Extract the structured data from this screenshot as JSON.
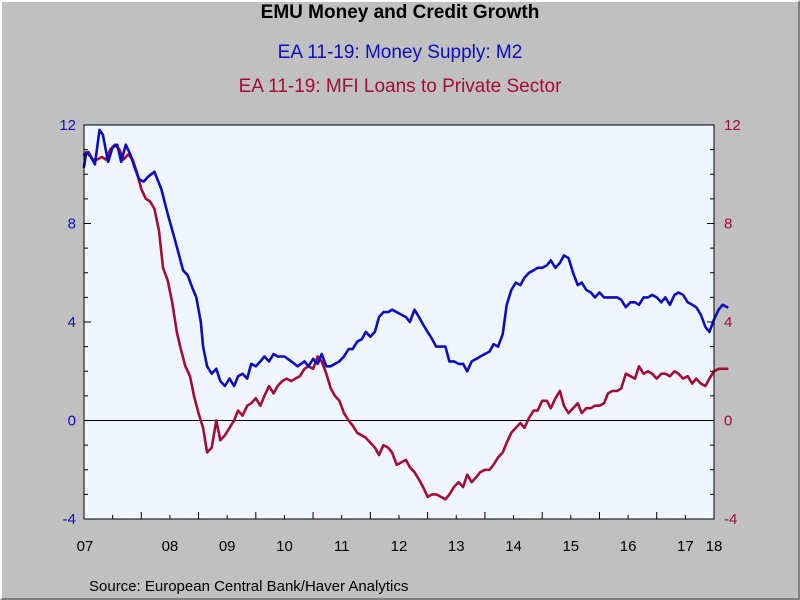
{
  "header": {
    "title": "EMU Money and Credit Growth",
    "series1_title": "EA 11-19: Money Supply: M2",
    "series2_title": "EA 11-19: MFI Loans to Private Sector"
  },
  "footer": {
    "source": "Source:  European Central Bank/Haver Analytics"
  },
  "colors": {
    "m2": "#0d0dbd",
    "loans": "#a30c36",
    "plot_bg": "#f0f6ff",
    "window_bg": "#c0c0c0"
  },
  "chart_data": {
    "type": "line",
    "title": "EMU Money and Credit Growth",
    "x_unit": "year",
    "xlim": [
      2007.0,
      2018.0
    ],
    "ylim": [
      -4,
      12
    ],
    "y_ticks": [
      -4,
      0,
      4,
      8,
      12
    ],
    "y_ticks_right": [
      -4,
      0,
      4,
      8,
      12
    ],
    "x_tick_labels": [
      "07",
      "08",
      "09",
      "10",
      "11",
      "12",
      "13",
      "14",
      "15",
      "16",
      "17",
      "18"
    ],
    "grid": false,
    "zero_line": true,
    "legend": "titles at top",
    "series": [
      {
        "name": "EA 11-19: Money Supply: M2",
        "color": "#0d0dbd",
        "points": [
          [
            2007.0,
            10.3
          ],
          [
            2007.04,
            10.9
          ],
          [
            2007.12,
            10.7
          ],
          [
            2007.19,
            10.4
          ],
          [
            2007.27,
            11.8
          ],
          [
            2007.33,
            11.6
          ],
          [
            2007.42,
            10.5
          ],
          [
            2007.5,
            11.1
          ],
          [
            2007.58,
            11.2
          ],
          [
            2007.65,
            10.5
          ],
          [
            2007.73,
            11.2
          ],
          [
            2007.81,
            10.8
          ],
          [
            2007.88,
            10.3
          ],
          [
            2007.96,
            9.8
          ],
          [
            2008.04,
            9.7
          ],
          [
            2008.12,
            9.9
          ],
          [
            2008.23,
            10.1
          ],
          [
            2008.35,
            9.4
          ],
          [
            2008.46,
            8.4
          ],
          [
            2008.58,
            7.4
          ],
          [
            2008.65,
            6.8
          ],
          [
            2008.73,
            6.1
          ],
          [
            2008.81,
            5.9
          ],
          [
            2008.89,
            5.4
          ],
          [
            2008.96,
            5.0
          ],
          [
            2009.04,
            4.0
          ],
          [
            2009.08,
            3.0
          ],
          [
            2009.15,
            2.2
          ],
          [
            2009.23,
            1.9
          ],
          [
            2009.31,
            2.1
          ],
          [
            2009.38,
            1.6
          ],
          [
            2009.46,
            1.4
          ],
          [
            2009.54,
            1.7
          ],
          [
            2009.62,
            1.4
          ],
          [
            2009.69,
            1.8
          ],
          [
            2009.77,
            1.9
          ],
          [
            2009.85,
            1.7
          ],
          [
            2009.92,
            2.3
          ],
          [
            2010.0,
            2.2
          ],
          [
            2010.08,
            2.4
          ],
          [
            2010.15,
            2.6
          ],
          [
            2010.23,
            2.4
          ],
          [
            2010.31,
            2.7
          ],
          [
            2010.38,
            2.6
          ],
          [
            2010.5,
            2.6
          ],
          [
            2010.62,
            2.4
          ],
          [
            2010.73,
            2.2
          ],
          [
            2010.85,
            2.4
          ],
          [
            2010.92,
            2.2
          ],
          [
            2011.0,
            2.5
          ],
          [
            2011.08,
            2.3
          ],
          [
            2011.15,
            2.7
          ],
          [
            2011.23,
            2.2
          ],
          [
            2011.31,
            2.2
          ],
          [
            2011.38,
            2.3
          ],
          [
            2011.46,
            2.4
          ],
          [
            2011.54,
            2.6
          ],
          [
            2011.62,
            2.9
          ],
          [
            2011.69,
            2.9
          ],
          [
            2011.77,
            3.2
          ],
          [
            2011.85,
            3.3
          ],
          [
            2011.92,
            3.6
          ],
          [
            2012.0,
            3.4
          ],
          [
            2012.08,
            3.6
          ],
          [
            2012.15,
            4.2
          ],
          [
            2012.23,
            4.4
          ],
          [
            2012.31,
            4.4
          ],
          [
            2012.38,
            4.5
          ],
          [
            2012.46,
            4.4
          ],
          [
            2012.54,
            4.3
          ],
          [
            2012.62,
            4.2
          ],
          [
            2012.69,
            4.0
          ],
          [
            2012.77,
            4.5
          ],
          [
            2012.85,
            4.2
          ],
          [
            2012.92,
            3.9
          ],
          [
            2013.0,
            3.6
          ],
          [
            2013.08,
            3.3
          ],
          [
            2013.15,
            3.0
          ],
          [
            2013.23,
            3.0
          ],
          [
            2013.31,
            3.0
          ],
          [
            2013.38,
            2.4
          ],
          [
            2013.46,
            2.4
          ],
          [
            2013.54,
            2.3
          ],
          [
            2013.62,
            2.3
          ],
          [
            2013.69,
            2.0
          ],
          [
            2013.77,
            2.4
          ],
          [
            2013.85,
            2.5
          ],
          [
            2013.92,
            2.6
          ],
          [
            2014.0,
            2.7
          ],
          [
            2014.08,
            2.8
          ],
          [
            2014.15,
            3.1
          ],
          [
            2014.23,
            3.0
          ],
          [
            2014.31,
            3.5
          ],
          [
            2014.38,
            4.7
          ],
          [
            2014.46,
            5.3
          ],
          [
            2014.54,
            5.6
          ],
          [
            2014.62,
            5.5
          ],
          [
            2014.69,
            5.8
          ],
          [
            2014.77,
            6.0
          ],
          [
            2014.85,
            6.1
          ],
          [
            2014.92,
            6.2
          ],
          [
            2015.0,
            6.2
          ],
          [
            2015.08,
            6.3
          ],
          [
            2015.15,
            6.5
          ],
          [
            2015.23,
            6.2
          ],
          [
            2015.31,
            6.4
          ],
          [
            2015.38,
            6.7
          ],
          [
            2015.46,
            6.6
          ],
          [
            2015.54,
            6.0
          ],
          [
            2015.62,
            5.5
          ],
          [
            2015.69,
            5.6
          ],
          [
            2015.77,
            5.3
          ],
          [
            2015.85,
            5.2
          ],
          [
            2015.92,
            5.0
          ],
          [
            2016.0,
            5.2
          ],
          [
            2016.08,
            5.0
          ],
          [
            2016.15,
            5.0
          ],
          [
            2016.23,
            5.0
          ],
          [
            2016.31,
            5.0
          ],
          [
            2016.38,
            4.9
          ],
          [
            2016.46,
            4.6
          ],
          [
            2016.54,
            4.8
          ],
          [
            2016.62,
            4.8
          ],
          [
            2016.69,
            4.7
          ],
          [
            2016.77,
            5.0
          ],
          [
            2016.85,
            5.0
          ],
          [
            2016.92,
            5.1
          ],
          [
            2017.0,
            5.0
          ],
          [
            2017.08,
            4.8
          ],
          [
            2017.15,
            5.0
          ],
          [
            2017.23,
            4.7
          ],
          [
            2017.31,
            5.1
          ],
          [
            2017.38,
            5.2
          ],
          [
            2017.46,
            5.1
          ],
          [
            2017.54,
            4.8
          ],
          [
            2017.62,
            4.7
          ],
          [
            2017.69,
            4.6
          ],
          [
            2017.77,
            4.3
          ],
          [
            2017.85,
            3.8
          ],
          [
            2017.92,
            3.6
          ],
          [
            2018.0,
            4.1
          ],
          [
            2018.08,
            4.5
          ],
          [
            2018.15,
            4.7
          ],
          [
            2018.23,
            4.6
          ]
        ]
      },
      {
        "name": "EA 11-19: MFI Loans to Private Sector",
        "color": "#a30c36",
        "points": [
          [
            2007.0,
            10.8
          ],
          [
            2007.08,
            10.9
          ],
          [
            2007.15,
            10.6
          ],
          [
            2007.23,
            10.6
          ],
          [
            2007.31,
            10.7
          ],
          [
            2007.38,
            10.6
          ],
          [
            2007.46,
            11.0
          ],
          [
            2007.54,
            11.2
          ],
          [
            2007.62,
            11.0
          ],
          [
            2007.69,
            10.6
          ],
          [
            2007.77,
            10.8
          ],
          [
            2007.85,
            10.6
          ],
          [
            2007.92,
            10.1
          ],
          [
            2008.0,
            9.4
          ],
          [
            2008.08,
            9.0
          ],
          [
            2008.15,
            8.9
          ],
          [
            2008.23,
            8.6
          ],
          [
            2008.31,
            7.7
          ],
          [
            2008.38,
            6.2
          ],
          [
            2008.46,
            5.7
          ],
          [
            2008.54,
            4.8
          ],
          [
            2008.62,
            3.6
          ],
          [
            2008.69,
            2.9
          ],
          [
            2008.77,
            2.2
          ],
          [
            2008.85,
            1.8
          ],
          [
            2008.92,
            1.0
          ],
          [
            2009.0,
            0.3
          ],
          [
            2009.08,
            -0.3
          ],
          [
            2009.15,
            -1.3
          ],
          [
            2009.23,
            -1.1
          ],
          [
            2009.31,
            0.0
          ],
          [
            2009.38,
            -0.8
          ],
          [
            2009.46,
            -0.6
          ],
          [
            2009.54,
            -0.3
          ],
          [
            2009.62,
            0.0
          ],
          [
            2009.69,
            0.4
          ],
          [
            2009.77,
            0.2
          ],
          [
            2009.85,
            0.6
          ],
          [
            2009.92,
            0.7
          ],
          [
            2010.0,
            0.9
          ],
          [
            2010.08,
            0.6
          ],
          [
            2010.15,
            1.0
          ],
          [
            2010.23,
            1.4
          ],
          [
            2010.31,
            1.1
          ],
          [
            2010.38,
            1.4
          ],
          [
            2010.46,
            1.6
          ],
          [
            2010.54,
            1.7
          ],
          [
            2010.62,
            1.6
          ],
          [
            2010.69,
            1.7
          ],
          [
            2010.77,
            1.8
          ],
          [
            2010.85,
            2.1
          ],
          [
            2010.92,
            2.2
          ],
          [
            2011.0,
            2.1
          ],
          [
            2011.08,
            2.6
          ],
          [
            2011.15,
            2.4
          ],
          [
            2011.23,
            1.9
          ],
          [
            2011.31,
            1.3
          ],
          [
            2011.38,
            1.0
          ],
          [
            2011.46,
            0.8
          ],
          [
            2011.54,
            0.3
          ],
          [
            2011.62,
            0.0
          ],
          [
            2011.69,
            -0.2
          ],
          [
            2011.77,
            -0.5
          ],
          [
            2011.85,
            -0.6
          ],
          [
            2011.92,
            -0.7
          ],
          [
            2012.0,
            -0.9
          ],
          [
            2012.08,
            -1.1
          ],
          [
            2012.15,
            -1.4
          ],
          [
            2012.23,
            -1.0
          ],
          [
            2012.31,
            -1.1
          ],
          [
            2012.38,
            -1.3
          ],
          [
            2012.46,
            -1.8
          ],
          [
            2012.54,
            -1.7
          ],
          [
            2012.62,
            -1.6
          ],
          [
            2012.69,
            -1.9
          ],
          [
            2012.77,
            -2.1
          ],
          [
            2012.85,
            -2.4
          ],
          [
            2012.92,
            -2.7
          ],
          [
            2013.0,
            -3.1
          ],
          [
            2013.08,
            -3.0
          ],
          [
            2013.15,
            -3.0
          ],
          [
            2013.23,
            -3.1
          ],
          [
            2013.31,
            -3.2
          ],
          [
            2013.38,
            -3.0
          ],
          [
            2013.46,
            -2.7
          ],
          [
            2013.54,
            -2.5
          ],
          [
            2013.62,
            -2.7
          ],
          [
            2013.69,
            -2.2
          ],
          [
            2013.77,
            -2.5
          ],
          [
            2013.85,
            -2.3
          ],
          [
            2013.92,
            -2.1
          ],
          [
            2014.0,
            -2.0
          ],
          [
            2014.08,
            -2.0
          ],
          [
            2014.15,
            -1.8
          ],
          [
            2014.23,
            -1.5
          ],
          [
            2014.31,
            -1.3
          ],
          [
            2014.38,
            -0.9
          ],
          [
            2014.46,
            -0.5
          ],
          [
            2014.54,
            -0.3
          ],
          [
            2014.62,
            -0.1
          ],
          [
            2014.69,
            -0.3
          ],
          [
            2014.77,
            0.1
          ],
          [
            2014.85,
            0.4
          ],
          [
            2014.92,
            0.4
          ],
          [
            2015.0,
            0.8
          ],
          [
            2015.08,
            0.8
          ],
          [
            2015.15,
            0.5
          ],
          [
            2015.23,
            0.9
          ],
          [
            2015.31,
            1.2
          ],
          [
            2015.38,
            0.6
          ],
          [
            2015.46,
            0.3
          ],
          [
            2015.54,
            0.5
          ],
          [
            2015.62,
            0.7
          ],
          [
            2015.69,
            0.3
          ],
          [
            2015.77,
            0.5
          ],
          [
            2015.85,
            0.5
          ],
          [
            2015.92,
            0.6
          ],
          [
            2016.0,
            0.6
          ],
          [
            2016.08,
            0.7
          ],
          [
            2016.15,
            1.1
          ],
          [
            2016.23,
            1.2
          ],
          [
            2016.31,
            1.2
          ],
          [
            2016.38,
            1.3
          ],
          [
            2016.46,
            1.9
          ],
          [
            2016.54,
            1.8
          ],
          [
            2016.62,
            1.7
          ],
          [
            2016.69,
            2.2
          ],
          [
            2016.77,
            1.9
          ],
          [
            2016.85,
            2.0
          ],
          [
            2016.92,
            1.9
          ],
          [
            2017.0,
            1.7
          ],
          [
            2017.08,
            1.9
          ],
          [
            2017.15,
            1.9
          ],
          [
            2017.23,
            1.8
          ],
          [
            2017.31,
            2.0
          ],
          [
            2017.38,
            1.9
          ],
          [
            2017.46,
            1.7
          ],
          [
            2017.54,
            1.8
          ],
          [
            2017.62,
            1.5
          ],
          [
            2017.69,
            1.7
          ],
          [
            2017.77,
            1.5
          ],
          [
            2017.85,
            1.4
          ],
          [
            2017.92,
            1.7
          ],
          [
            2018.0,
            2.0
          ],
          [
            2018.08,
            2.1
          ],
          [
            2018.23,
            2.1
          ]
        ]
      }
    ]
  }
}
